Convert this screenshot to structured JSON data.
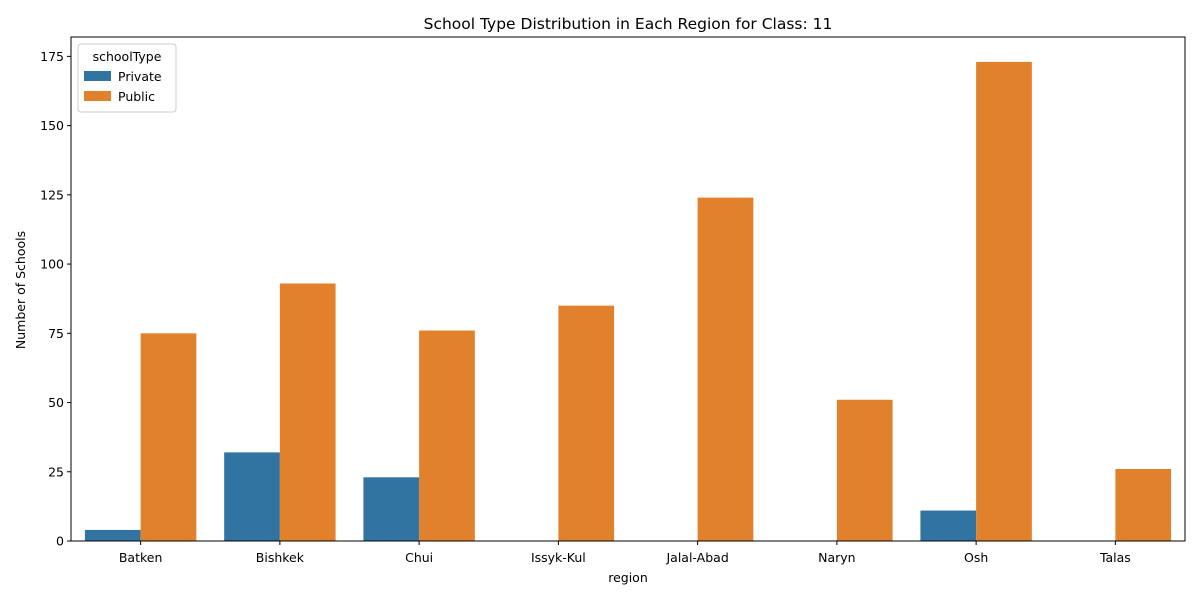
{
  "chart_data": {
    "type": "bar",
    "title": "School Type Distribution in Each Region for Class: 11",
    "xlabel": "region",
    "ylabel": "Number of Schools",
    "categories": [
      "Batken",
      "Bishkek",
      "Chui",
      "Issyk-Kul",
      "Jalal-Abad",
      "Naryn",
      "Osh",
      "Talas"
    ],
    "series": [
      {
        "name": "Private",
        "color": "#3274a1",
        "values": [
          4,
          32,
          23,
          0,
          0,
          0,
          11,
          0
        ]
      },
      {
        "name": "Public",
        "color": "#e1812c",
        "values": [
          75,
          93,
          76,
          85,
          124,
          51,
          173,
          26
        ]
      }
    ],
    "ylim": [
      0,
      182
    ],
    "yticks": [
      0,
      25,
      50,
      75,
      100,
      125,
      150,
      175
    ],
    "grid": false,
    "legend": {
      "title": "schoolType",
      "position": "top-left"
    }
  }
}
